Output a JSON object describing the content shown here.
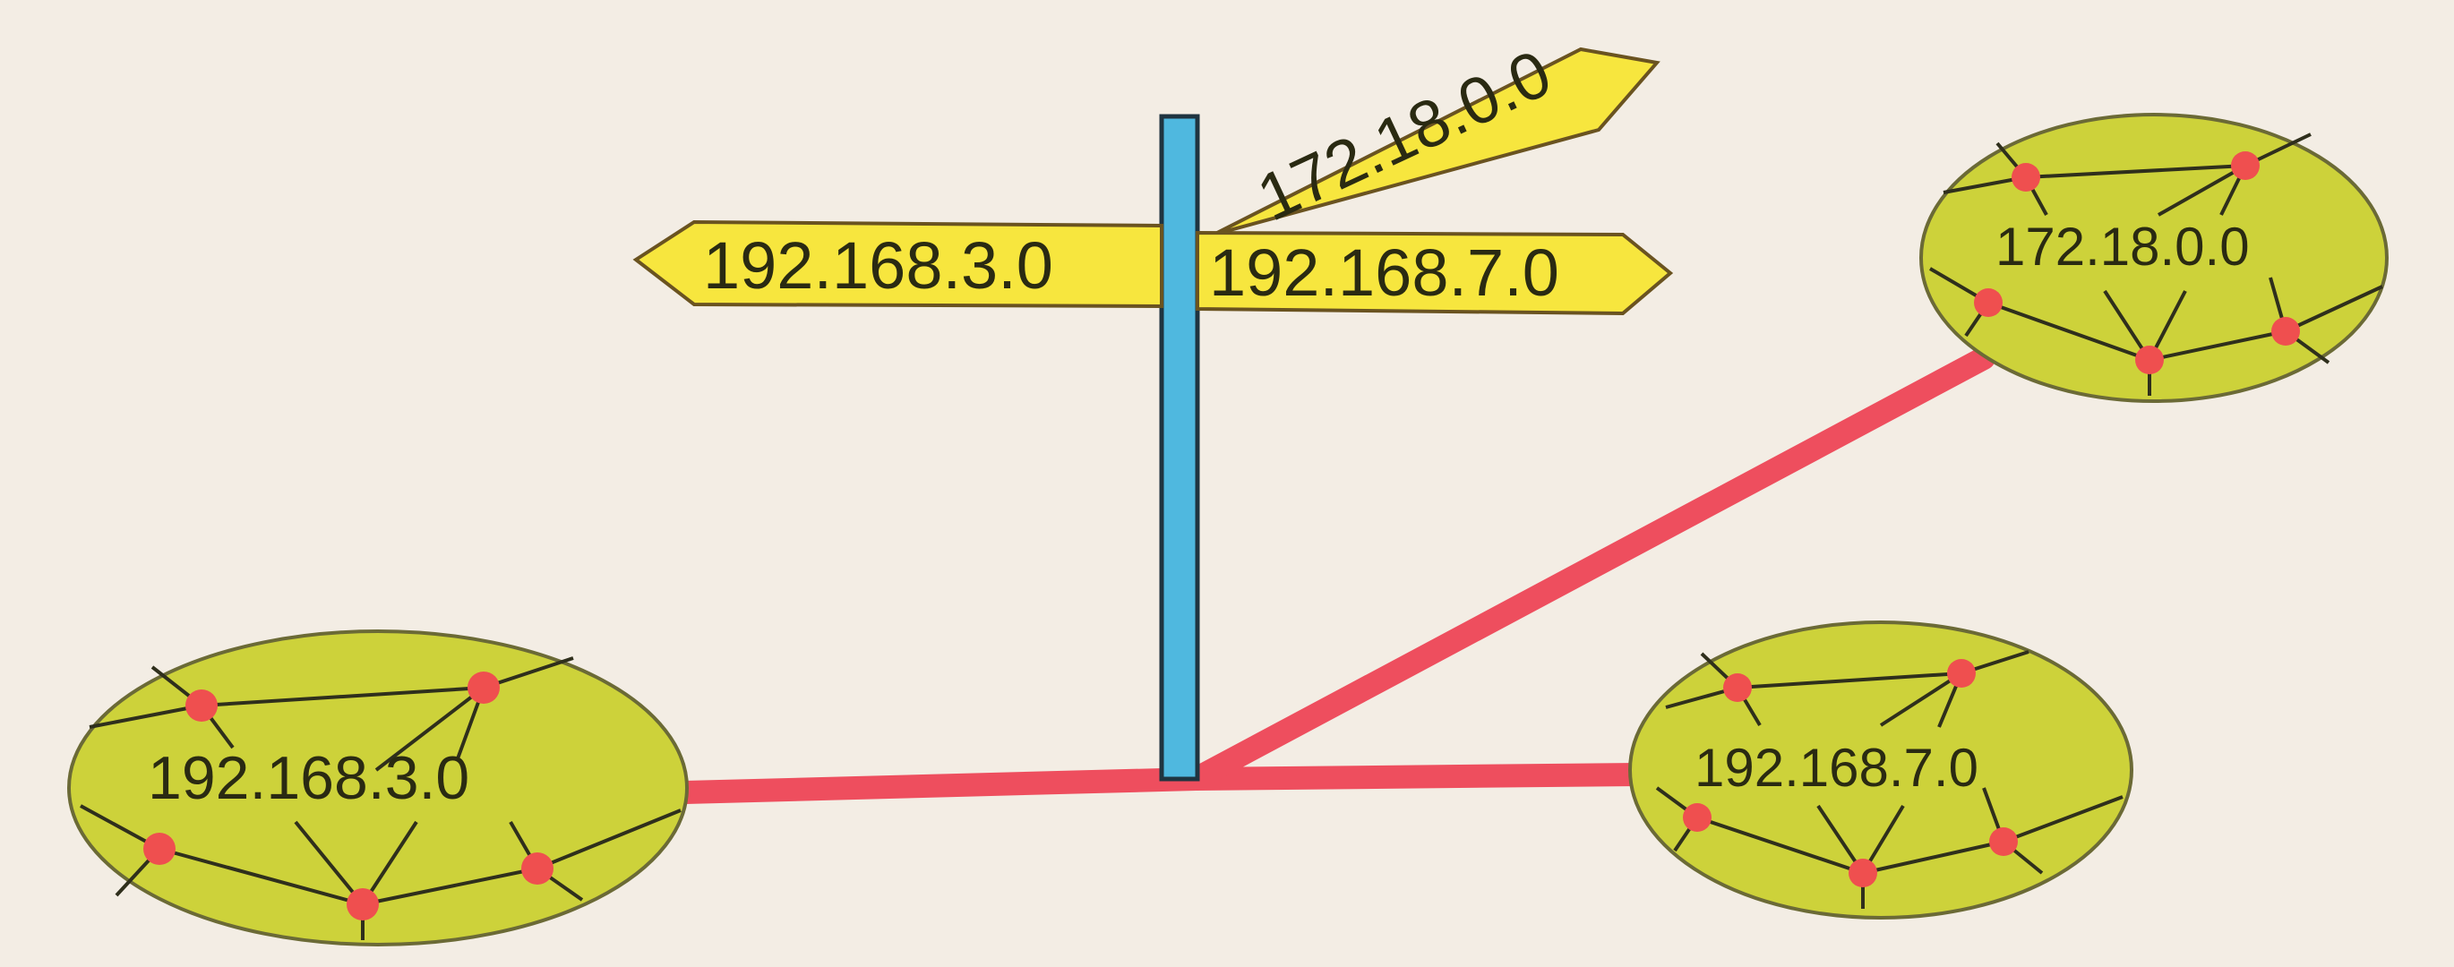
{
  "signpost": {
    "left_sign": "192.168.3.0",
    "right_sign": "192.168.7.0",
    "upper_sign": "172.18.0.0"
  },
  "networks": [
    {
      "label": "192.168.3.0"
    },
    {
      "label": "192.168.7.0"
    },
    {
      "label": "172.18.0.0"
    }
  ],
  "colors": {
    "network_fill": "#cdd23a",
    "node": "#ef4f4f",
    "link": "#ee4e5e",
    "sign_fill": "#f7e63e",
    "pole": "#4fb8df",
    "background": "#f3ede4"
  }
}
